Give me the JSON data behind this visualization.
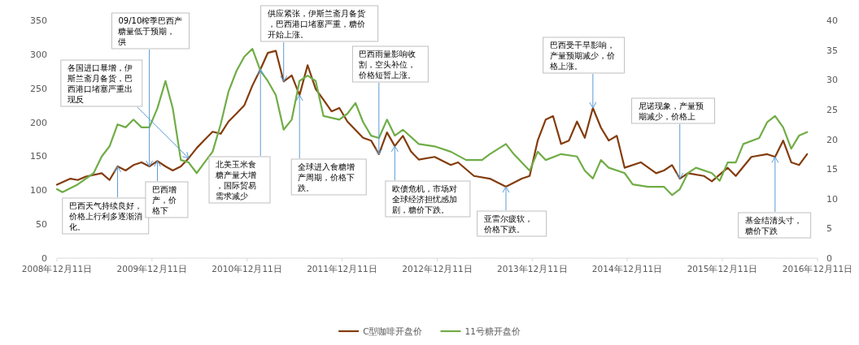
{
  "chart_data": {
    "type": "line",
    "legend": "bottom",
    "xlim": [
      "2008-12-11",
      "2016-12-11"
    ],
    "xticks": [
      {
        "value": "2008-12-11",
        "label": "2008年12月11日"
      },
      {
        "value": "2009-12-11",
        "label": "2009年12月11日"
      },
      {
        "value": "2010-12-11",
        "label": "2010年12月11日"
      },
      {
        "value": "2011-12-11",
        "label": "2011年12月11日"
      },
      {
        "value": "2012-12-11",
        "label": "2012年12月11日"
      },
      {
        "value": "2013-12-11",
        "label": "2013年12月11日"
      },
      {
        "value": "2014-12-11",
        "label": "2014年12月11日"
      },
      {
        "value": "2015-12-11",
        "label": "2015年12月11日"
      },
      {
        "value": "2016-12-11",
        "label": "2016年12月11日"
      }
    ],
    "ylim": [
      0,
      350
    ],
    "yticks": [
      0,
      50,
      100,
      150,
      200,
      250,
      300,
      350
    ],
    "y2lim": [
      0,
      40
    ],
    "y2ticks": [
      0,
      5,
      10,
      15,
      20,
      25,
      30,
      35,
      40
    ],
    "series": [
      {
        "name": "C型咖啡开盘价",
        "color": "#843c0c",
        "x": [
          "2008-12-11",
          "2009-02",
          "2009-03",
          "2009-04",
          "2009-06",
          "2009-07",
          "2009-08",
          "2009-09",
          "2009-10",
          "2009-11",
          "2009-12",
          "2010-01",
          "2010-02",
          "2010-03",
          "2010-04",
          "2010-05",
          "2010-06",
          "2010-07",
          "2010-08",
          "2010-09",
          "2010-10",
          "2010-11",
          "2010-12",
          "2011-01",
          "2011-02",
          "2011-03",
          "2011-04",
          "2011-05",
          "2011-06",
          "2011-07",
          "2011-08",
          "2011-09",
          "2011-10",
          "2011-11",
          "2011-12",
          "2012-01",
          "2012-03",
          "2012-04",
          "2012-05",
          "2012-06",
          "2012-07",
          "2012-08",
          "2012-09",
          "2012-10",
          "2012-12",
          "2013-02",
          "2013-03",
          "2013-05",
          "2013-07",
          "2013-09",
          "2013-11",
          "2013-12",
          "2014-01",
          "2014-02",
          "2014-03",
          "2014-04",
          "2014-05",
          "2014-06",
          "2014-07",
          "2014-08",
          "2014-09",
          "2014-10",
          "2014-11",
          "2014-12",
          "2015-02",
          "2015-04",
          "2015-05",
          "2015-06",
          "2015-07",
          "2015-08",
          "2015-10",
          "2015-11",
          "2016-01",
          "2016-02",
          "2016-04",
          "2016-06",
          "2016-07",
          "2016-08",
          "2016-09",
          "2016-10",
          "2016-11"
        ],
        "values": [
          108,
          117,
          115,
          120,
          125,
          115,
          135,
          129,
          137,
          141,
          135,
          143,
          135,
          129,
          135,
          147,
          162,
          174,
          186,
          183,
          201,
          213,
          225,
          254,
          278,
          302,
          305,
          260,
          269,
          240,
          284,
          249,
          233,
          216,
          221,
          201,
          177,
          173,
          153,
          185,
          165,
          180,
          157,
          145,
          149,
          137,
          141,
          121,
          117,
          105,
          117,
          121,
          173,
          204,
          209,
          168,
          173,
          201,
          177,
          221,
          192,
          173,
          180,
          133,
          141,
          125,
          129,
          137,
          117,
          125,
          121,
          113,
          133,
          121,
          149,
          153,
          149,
          173,
          141,
          137,
          153
        ]
      },
      {
        "name": "11号糖开盘价",
        "color": "#70ad47",
        "axis": "y2",
        "x": [
          "2008-12-11",
          "2009-01",
          "2009-03",
          "2009-05",
          "2009-06",
          "2009-07",
          "2009-08",
          "2009-09",
          "2009-10",
          "2009-11",
          "2009-12",
          "2010-01",
          "2010-02",
          "2010-03",
          "2010-04",
          "2010-05",
          "2010-06",
          "2010-07",
          "2010-08",
          "2010-09",
          "2010-10",
          "2010-11",
          "2010-12",
          "2011-01",
          "2011-02",
          "2011-03",
          "2011-04",
          "2011-05",
          "2011-06",
          "2011-07",
          "2011-08",
          "2011-09",
          "2011-10",
          "2011-12",
          "2012-01",
          "2012-02",
          "2012-03",
          "2012-04",
          "2012-05",
          "2012-06",
          "2012-07",
          "2012-08",
          "2012-10",
          "2012-12",
          "2013-02",
          "2013-04",
          "2013-06",
          "2013-07",
          "2013-09",
          "2013-10",
          "2013-12",
          "2014-01",
          "2014-02",
          "2014-04",
          "2014-06",
          "2014-07",
          "2014-08",
          "2014-09",
          "2014-10",
          "2014-12",
          "2015-01",
          "2015-03",
          "2015-05",
          "2015-06",
          "2015-07",
          "2015-08",
          "2015-09",
          "2015-11",
          "2015-12",
          "2016-01",
          "2016-02",
          "2016-03",
          "2016-05",
          "2016-06",
          "2016-07",
          "2016-08",
          "2016-09",
          "2016-10",
          "2016-11"
        ],
        "values": [
          11.6,
          11.1,
          12.4,
          14.3,
          17.1,
          18.8,
          22.5,
          22.0,
          23.3,
          22.0,
          22.0,
          25.2,
          29.8,
          25.2,
          16.5,
          16.1,
          14.3,
          16.1,
          17.9,
          22.5,
          28.0,
          31.5,
          33.9,
          35.2,
          31.5,
          29.8,
          27.4,
          21.6,
          23.3,
          29.8,
          30.7,
          29.8,
          23.9,
          23.3,
          24.3,
          26.1,
          22.9,
          20.6,
          20.2,
          23.3,
          20.6,
          21.6,
          19.2,
          18.8,
          17.9,
          16.5,
          16.5,
          17.5,
          19.2,
          17.5,
          14.7,
          17.9,
          16.5,
          17.5,
          17.1,
          14.7,
          13.4,
          16.5,
          15.2,
          14.3,
          12.4,
          12.0,
          12.0,
          10.6,
          11.6,
          14.3,
          15.2,
          14.3,
          13.0,
          16.1,
          16.1,
          19.2,
          20.2,
          22.9,
          23.9,
          22.0,
          18.4,
          20.6,
          21.2
        ]
      }
    ],
    "annotations": [
      {
        "text": "09/10榨季巴西产糖量低于预期，供",
        "x": "2009-12",
        "y": 135
      },
      {
        "text": "各国进口暴增，伊斯兰斋月备货，巴西港口堵塞严重出现反",
        "x": "2010-05",
        "y": 147
      },
      {
        "text": "巴西天气持续良好，价格上行利多逐渐消化。",
        "x": "2009-08",
        "y": 135
      },
      {
        "text": "巴西增产，价格下",
        "x": "2010-01",
        "y": 143
      },
      {
        "text": "北美玉米食糖产量大增，国际贸易需求减少",
        "x": "2011-02",
        "y": 278
      },
      {
        "text": "全球进入食糖增产周期，价格下跌。",
        "x": "2011-07",
        "y": 240
      },
      {
        "text": "供应紧张，伊斯兰斋月备货，巴西港口堵塞严重，糖价开始上涨。",
        "x": "2011-05",
        "y": 260
      },
      {
        "text": "巴西雨量影响收割，空头补位，价格短暂上涨。",
        "x": "2012-05",
        "y": 153
      },
      {
        "text": "欧债危机，市场对全球经济担忧感加剧，糖价下跌。",
        "x": "2012-07",
        "y": 165
      },
      {
        "text": "亚雷尔疲软，价格下跌。",
        "x": "2013-09",
        "y": 105
      },
      {
        "text": "巴西受干旱影响，产量预期减少，价格上涨。",
        "x": "2014-08",
        "y": 221
      },
      {
        "text": "尼诺现象，产量预期减少，价格上",
        "x": "2015-07",
        "y": 117
      },
      {
        "text": "基金结清头寸，糖价下跌",
        "x": "2016-07",
        "y": 149
      }
    ]
  }
}
